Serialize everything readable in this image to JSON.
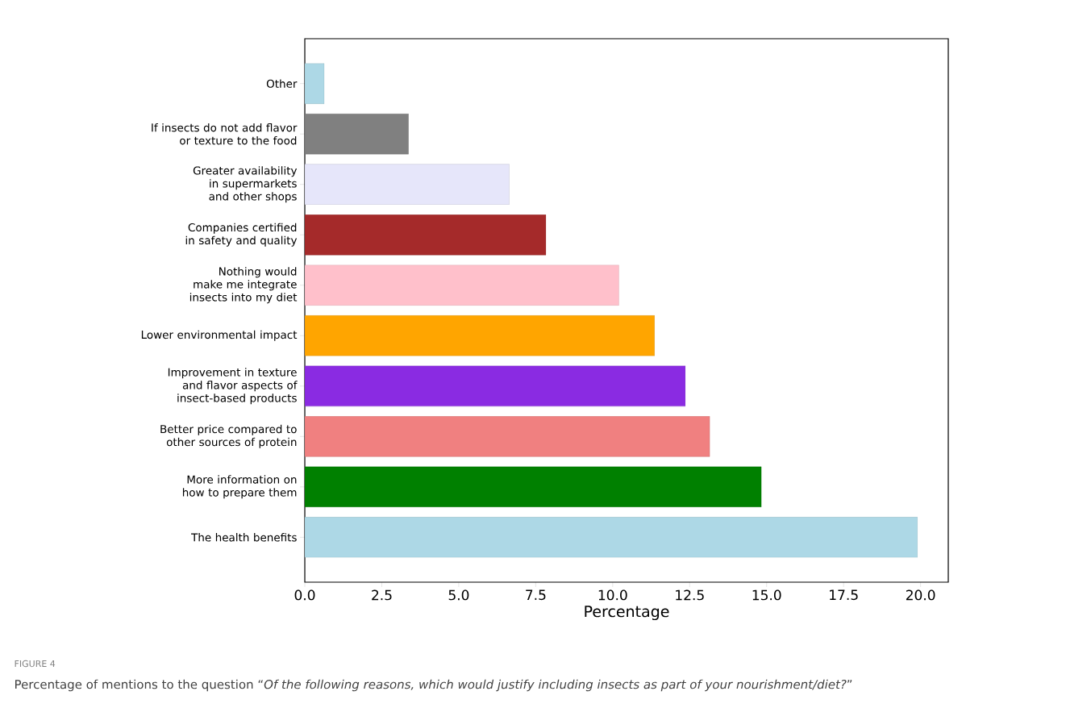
{
  "chart_data": {
    "type": "bar",
    "orientation": "horizontal",
    "categories": [
      "Other",
      "If insects do not add flavor or texture to the food",
      "Greater availability in supermarkets and other shops",
      "Companies certified in safety and quality",
      "Nothing would make me integrate insects into my diet",
      "Lower environmental impact",
      "Improvement in texture and flavor aspects of insect-based products",
      "Better price compared to other sources of protein",
      "More information on how to prepare them",
      "The health benefits"
    ],
    "values": [
      0.63,
      3.37,
      6.64,
      7.83,
      10.2,
      11.36,
      12.36,
      13.15,
      14.83,
      19.9
    ],
    "colors": [
      "#add8e6",
      "#808080",
      "#e6e6fa",
      "#a52a2a",
      "#ffc0cb",
      "#ffa500",
      "#8a2be2",
      "#f08080",
      "#008000",
      "#add8e6"
    ],
    "xlim": [
      0,
      20.9
    ],
    "xticks": [
      {
        "value": 0,
        "label": "0.0"
      },
      {
        "value": 2.5,
        "label": "2.5"
      },
      {
        "value": 5,
        "label": "5.0"
      },
      {
        "value": 7.5,
        "label": "7.5"
      },
      {
        "value": 10,
        "label": "10.0"
      },
      {
        "value": 12.5,
        "label": "12.5"
      },
      {
        "value": 15,
        "label": "15.0"
      },
      {
        "value": 17.5,
        "label": "17.5"
      },
      {
        "value": 20,
        "label": "20.0"
      }
    ],
    "xlabel": "Percentage",
    "annotations": [
      "FIGURE 4",
      "Percentage of mentions to the question “*Of the following reasons, which would justify including insects as part of your nourishment/diet?*”"
    ]
  }
}
